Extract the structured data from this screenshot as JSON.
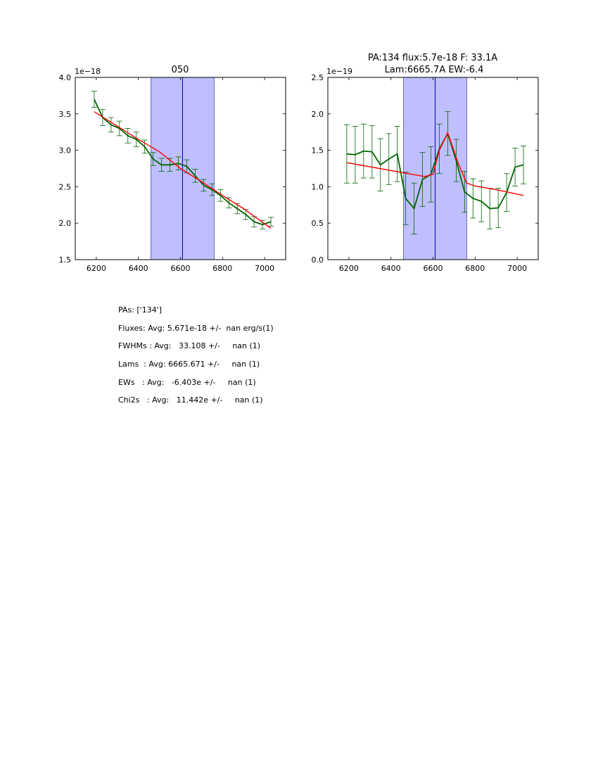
{
  "chart_data": [
    {
      "type": "line",
      "title": "050",
      "offset_label": "1e−18",
      "xlim": [
        6100,
        7100
      ],
      "ylim": [
        1.5,
        4.0
      ],
      "xticks": [
        "6200",
        "6400",
        "6600",
        "6800",
        "7000"
      ],
      "xtick_values": [
        6200,
        6400,
        6600,
        6800,
        7000
      ],
      "yticks": [
        "1.5",
        "2.0",
        "2.5",
        "3.0",
        "3.5",
        "4.0"
      ],
      "ytick_values": [
        1.5,
        2.0,
        2.5,
        3.0,
        3.5,
        4.0
      ],
      "band": [
        6460,
        6760
      ],
      "center_line": 6610,
      "data_color": "#006400",
      "model_color": "#ff0000",
      "band_color": "#8080ff",
      "center_color": "#0000aa",
      "data": {
        "x": [
          6190,
          6230,
          6270,
          6310,
          6350,
          6390,
          6430,
          6470,
          6510,
          6550,
          6590,
          6630,
          6670,
          6710,
          6750,
          6790,
          6830,
          6870,
          6910,
          6950,
          6990,
          7030
        ],
        "y": [
          3.7,
          3.45,
          3.35,
          3.3,
          3.2,
          3.15,
          3.05,
          2.88,
          2.8,
          2.8,
          2.82,
          2.78,
          2.65,
          2.52,
          2.46,
          2.38,
          2.28,
          2.2,
          2.12,
          2.02,
          1.98,
          2.02
        ],
        "err": [
          0.11,
          0.11,
          0.1,
          0.1,
          0.1,
          0.1,
          0.09,
          0.09,
          0.09,
          0.09,
          0.09,
          0.09,
          0.09,
          0.08,
          0.08,
          0.08,
          0.07,
          0.07,
          0.07,
          0.07,
          0.06,
          0.06
        ]
      },
      "model": {
        "x": [
          6190,
          6400,
          6500,
          6600,
          6700,
          6800,
          6900,
          7030
        ],
        "y": [
          3.53,
          3.15,
          2.98,
          2.75,
          2.57,
          2.38,
          2.2,
          1.93
        ]
      }
    },
    {
      "type": "line",
      "title_line1": "PA:134 flux:5.7e-18 F: 33.1A",
      "title_line2": "Lam:6665.7A EW:-6.4",
      "offset_label": "1e−19",
      "xlim": [
        6100,
        7100
      ],
      "ylim": [
        0.0,
        2.5
      ],
      "xticks": [
        "6200",
        "6400",
        "6600",
        "6800",
        "7000"
      ],
      "xtick_values": [
        6200,
        6400,
        6600,
        6800,
        7000
      ],
      "yticks": [
        "0.0",
        "0.5",
        "1.0",
        "1.5",
        "2.0",
        "2.5"
      ],
      "ytick_values": [
        0.0,
        0.5,
        1.0,
        1.5,
        2.0,
        2.5
      ],
      "band": [
        6460,
        6760
      ],
      "center_line": 6610,
      "data_color": "#006400",
      "model_color": "#ff0000",
      "band_color": "#8080ff",
      "center_color": "#0000aa",
      "data": {
        "x": [
          6190,
          6230,
          6270,
          6310,
          6350,
          6390,
          6430,
          6470,
          6510,
          6550,
          6590,
          6630,
          6670,
          6710,
          6750,
          6790,
          6830,
          6870,
          6910,
          6950,
          6990,
          7030
        ],
        "y": [
          1.45,
          1.44,
          1.49,
          1.48,
          1.3,
          1.38,
          1.45,
          0.84,
          0.7,
          1.1,
          1.17,
          1.52,
          1.73,
          1.36,
          0.93,
          0.84,
          0.8,
          0.7,
          0.71,
          0.92,
          1.27,
          1.3
        ],
        "err": [
          0.4,
          0.39,
          0.37,
          0.36,
          0.36,
          0.35,
          0.38,
          0.36,
          0.35,
          0.37,
          0.38,
          0.34,
          0.3,
          0.29,
          0.28,
          0.27,
          0.28,
          0.28,
          0.27,
          0.26,
          0.26,
          0.26
        ]
      },
      "model": {
        "x": [
          6190,
          6560,
          6600,
          6630,
          6670,
          6720,
          6760,
          6800,
          6900,
          7030
        ],
        "y": [
          1.33,
          1.14,
          1.17,
          1.5,
          1.74,
          1.32,
          1.05,
          1.01,
          0.96,
          0.88
        ]
      }
    }
  ],
  "stats": {
    "pas": "PAs: ['134']",
    "fluxes": "Fluxes: Avg: 5.671e-18 +/-  nan erg/s(1)",
    "fwhms": "FWHMs : Avg:   33.108 +/-     nan (1)",
    "lams": "Lams  : Avg: 6665.671 +/-     nan (1)",
    "ews": "EWs   : Avg:   -6.403e +/-     nan (1)",
    "chi2s": "Chi2s   : Avg:   11.442e +/-     nan (1)"
  }
}
